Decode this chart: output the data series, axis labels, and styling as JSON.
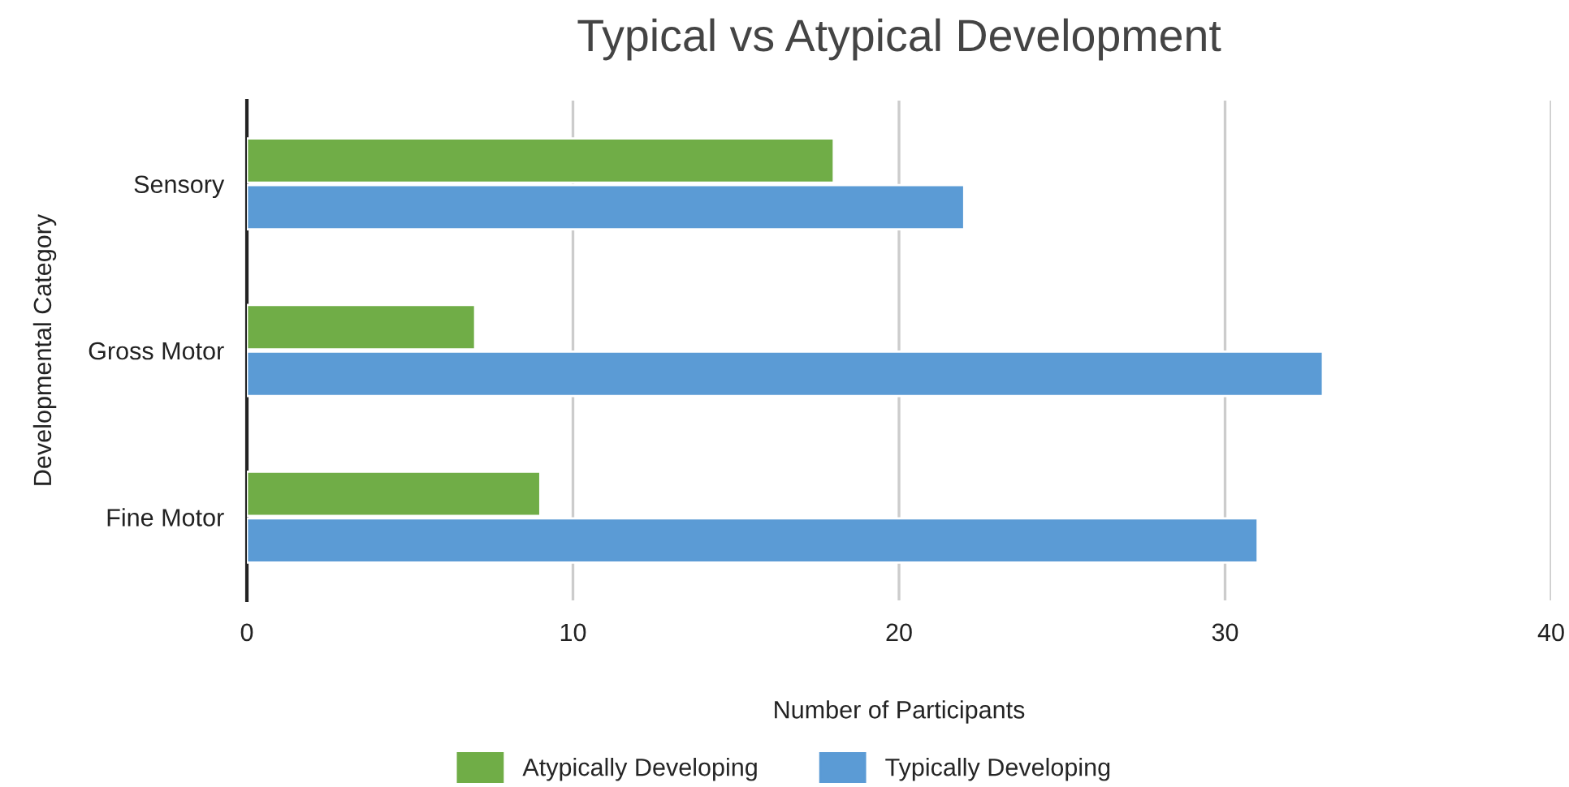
{
  "chart_data": {
    "type": "bar",
    "orientation": "horizontal",
    "title": "Typical vs Atypical Development",
    "xlabel": "Number of Participants",
    "ylabel": "Developmental Category",
    "categories": [
      "Sensory",
      "Gross Motor",
      "Fine Motor"
    ],
    "series": [
      {
        "name": "Atypically Developing",
        "color": "#70ad47",
        "values": [
          18,
          7,
          9
        ]
      },
      {
        "name": "Typically Developing",
        "color": "#5b9bd5",
        "values": [
          22,
          33,
          31
        ]
      }
    ],
    "xlim": [
      0,
      40
    ],
    "xticks": [
      0,
      10,
      20,
      30,
      40
    ],
    "grid": "x",
    "legend": "bottom"
  }
}
